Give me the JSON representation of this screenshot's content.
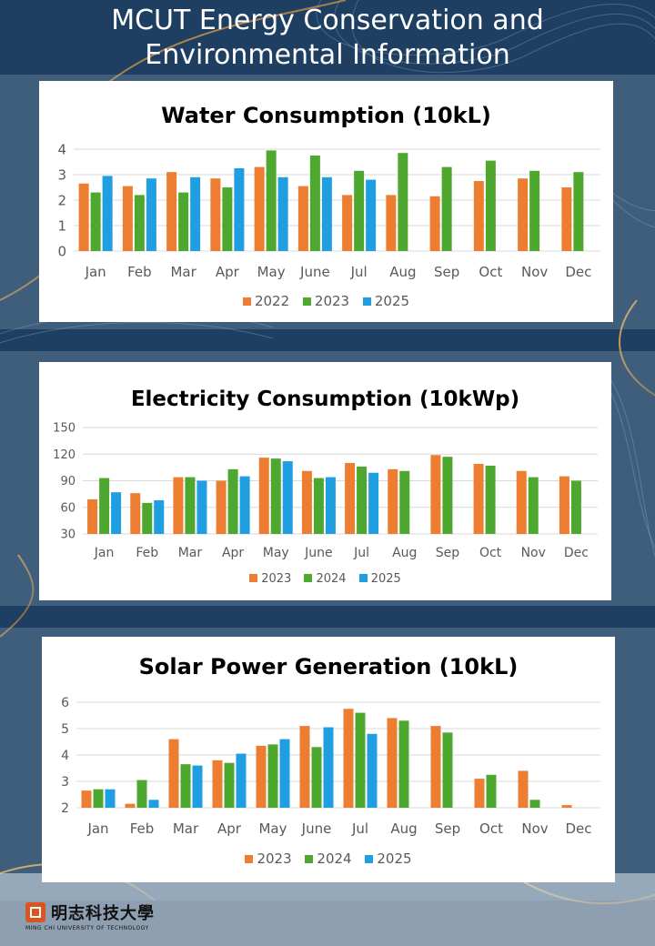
{
  "page": {
    "title_line1": "MCUT Energy Conservation and",
    "title_line2": "Environmental Information"
  },
  "logo": {
    "name_cn": "明志科技大學",
    "name_en": "MING CHI UNIVERSITY OF TECHNOLOGY"
  },
  "colors": {
    "series_a": "#ed7d31",
    "series_b": "#4ea72e",
    "series_c": "#1f9ee0",
    "background": "#1e3f62"
  },
  "chart_data": [
    {
      "type": "bar",
      "title": "Water Consumption (10kL)",
      "categories": [
        "Jan",
        "Feb",
        "Mar",
        "Apr",
        "May",
        "June",
        "Jul",
        "Aug",
        "Sep",
        "Oct",
        "Nov",
        "Dec"
      ],
      "ylim": [
        0,
        4
      ],
      "yticks": [
        "0",
        "1",
        "2",
        "3",
        "4"
      ],
      "grid": true,
      "legend_position": "bottom",
      "series": [
        {
          "name": "2022",
          "values": [
            2.65,
            2.55,
            3.1,
            2.85,
            3.3,
            2.55,
            2.2,
            2.2,
            2.15,
            2.75,
            2.85,
            2.5
          ]
        },
        {
          "name": "2023",
          "values": [
            2.3,
            2.2,
            2.3,
            2.5,
            3.95,
            3.75,
            3.15,
            3.85,
            3.3,
            3.55,
            3.15,
            3.1
          ]
        },
        {
          "name": "2025",
          "values": [
            2.95,
            2.85,
            2.9,
            3.25,
            2.9,
            2.9,
            2.8,
            null,
            null,
            null,
            null,
            null
          ]
        }
      ]
    },
    {
      "type": "bar",
      "title": "Electricity Consumption (10kWp)",
      "categories": [
        "Jan",
        "Feb",
        "Mar",
        "Apr",
        "May",
        "June",
        "Jul",
        "Aug",
        "Sep",
        "Oct",
        "Nov",
        "Dec"
      ],
      "ylim": [
        30,
        150
      ],
      "yticks": [
        "30",
        "60",
        "90",
        "120",
        "150"
      ],
      "grid": true,
      "legend_position": "bottom",
      "series": [
        {
          "name": "2023",
          "values": [
            69,
            76,
            94,
            90,
            116,
            101,
            110,
            103,
            119,
            109,
            101,
            95
          ]
        },
        {
          "name": "2024",
          "values": [
            93,
            65,
            94,
            103,
            115,
            93,
            106,
            101,
            117,
            107,
            94,
            90
          ]
        },
        {
          "name": "2025",
          "values": [
            77,
            68,
            90,
            95,
            112,
            94,
            99,
            null,
            null,
            null,
            null,
            null
          ]
        }
      ]
    },
    {
      "type": "bar",
      "title": "Solar Power Generation (10kL)",
      "categories": [
        "Jan",
        "Feb",
        "Mar",
        "Apr",
        "May",
        "June",
        "Jul",
        "Aug",
        "Sep",
        "Oct",
        "Nov",
        "Dec"
      ],
      "ylim": [
        2,
        6
      ],
      "yticks": [
        "2",
        "3",
        "4",
        "5",
        "6"
      ],
      "grid": true,
      "legend_position": "bottom",
      "series": [
        {
          "name": "2023",
          "values": [
            2.65,
            2.15,
            4.6,
            3.8,
            4.35,
            5.1,
            5.75,
            5.4,
            5.1,
            3.1,
            3.4,
            2.1
          ]
        },
        {
          "name": "2024",
          "values": [
            2.7,
            3.05,
            3.65,
            3.7,
            4.4,
            4.3,
            5.6,
            5.3,
            4.85,
            3.25,
            2.3,
            null
          ]
        },
        {
          "name": "2025",
          "values": [
            2.7,
            2.3,
            3.6,
            4.05,
            4.6,
            5.05,
            4.8,
            null,
            null,
            null,
            null,
            null
          ]
        }
      ]
    }
  ]
}
